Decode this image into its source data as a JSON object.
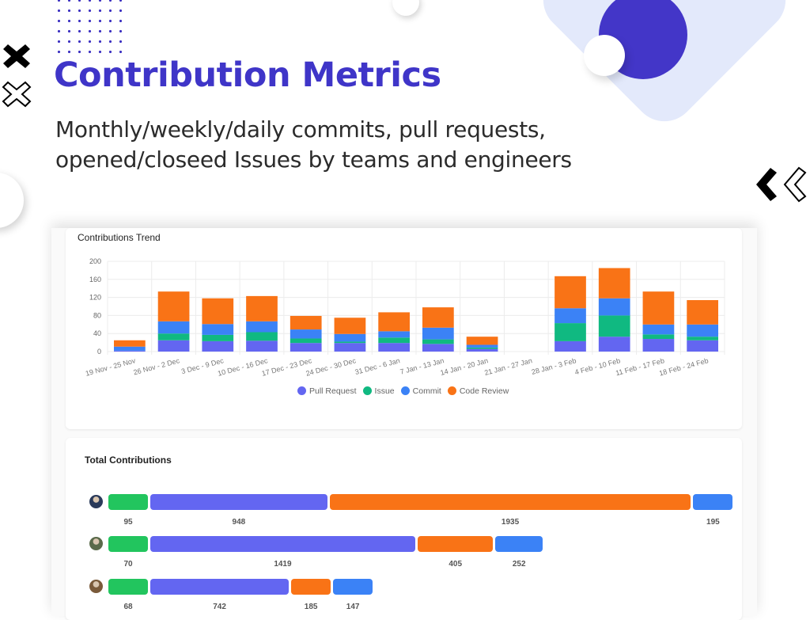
{
  "header": {
    "title": "Contribution Metrics",
    "subtitle_line1": "Monthly/weekly/daily commits, pull requests,",
    "subtitle_line2": "opened/closeed Issues by teams and engineers"
  },
  "colors": {
    "brand": "#3f35c8",
    "pull_request": "#6366f1",
    "issue": "#10b981",
    "commit": "#3b82f6",
    "code_review": "#f97316",
    "issue_bar": "#22c55e"
  },
  "chart_data": {
    "type": "bar",
    "stacked": true,
    "title": "Contributions Trend",
    "ylim": [
      0,
      200
    ],
    "yticks": [
      0,
      40,
      80,
      120,
      160,
      200
    ],
    "grid": true,
    "legend": "bottom",
    "categories": [
      "19 Nov - 25 Nov",
      "26 Nov - 2 Dec",
      "3 Dec - 9 Dec",
      "10 Dec - 16 Dec",
      "17 Dec - 23 Dec",
      "24 Dec - 30 Dec",
      "31 Dec - 6 Jan",
      "7 Jan - 13 Jan",
      "14 Jan - 20 Jan",
      "21 Jan - 27 Jan",
      "28 Jan - 3 Feb",
      "4 Feb - 10 Feb",
      "11 Feb - 17 Feb",
      "18 Feb - 24 Feb"
    ],
    "series": [
      {
        "name": "Pull Request",
        "color": "#6366f1",
        "values": [
          2,
          25,
          23,
          24,
          19,
          19,
          19,
          17,
          6,
          0,
          23,
          33,
          28,
          25
        ]
      },
      {
        "name": "Issue",
        "color": "#10b981",
        "values": [
          0,
          15,
          14,
          19,
          10,
          3,
          12,
          10,
          3,
          0,
          40,
          47,
          10,
          8
        ]
      },
      {
        "name": "Commit",
        "color": "#3b82f6",
        "values": [
          9,
          27,
          24,
          24,
          20,
          17,
          14,
          26,
          6,
          0,
          33,
          38,
          22,
          27
        ]
      },
      {
        "name": "Code Review",
        "color": "#f97316",
        "values": [
          14,
          66,
          57,
          56,
          30,
          36,
          42,
          45,
          18,
          0,
          71,
          67,
          73,
          54
        ]
      }
    ]
  },
  "totals": {
    "title": "Total Contributions",
    "rows": [
      {
        "avatar_color": "#2a3a5a",
        "segments": [
          {
            "type": "issue",
            "value": 95
          },
          {
            "type": "pull_request",
            "value": 948
          },
          {
            "type": "code_review",
            "value": 1935
          },
          {
            "type": "commit",
            "value": 195
          }
        ]
      },
      {
        "avatar_color": "#5a6a4a",
        "segments": [
          {
            "type": "issue",
            "value": 70
          },
          {
            "type": "pull_request",
            "value": 1419
          },
          {
            "type": "code_review",
            "value": 405
          },
          {
            "type": "commit",
            "value": 252
          }
        ]
      },
      {
        "avatar_color": "#7a5a3a",
        "segments": [
          {
            "type": "issue",
            "value": 68
          },
          {
            "type": "pull_request",
            "value": 742
          },
          {
            "type": "code_review",
            "value": 185
          },
          {
            "type": "commit",
            "value": 147
          }
        ]
      }
    ]
  }
}
